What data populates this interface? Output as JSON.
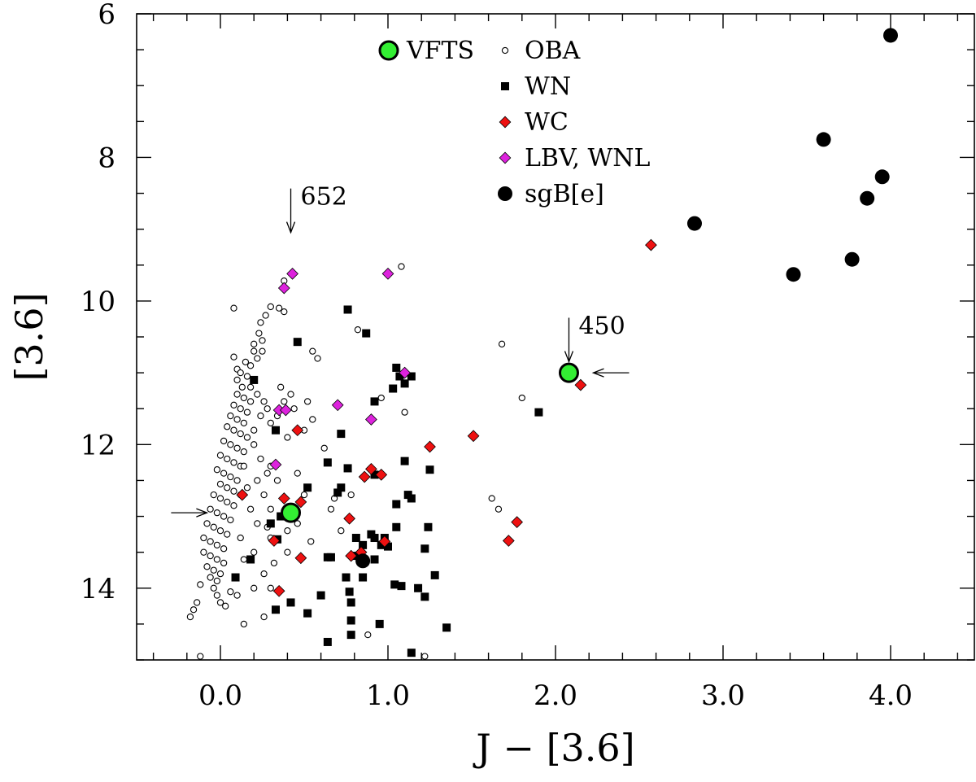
{
  "chart_data": {
    "type": "scatter",
    "xlabel": "J − [3.6]",
    "ylabel": "[3.6]",
    "xlim": [
      -0.5,
      4.5
    ],
    "ylim": [
      15.0,
      6.0
    ],
    "y_inverted": true,
    "xticks": [
      0.0,
      1.0,
      2.0,
      3.0,
      4.0
    ],
    "xtick_labels": [
      "0.0",
      "1.0",
      "2.0",
      "3.0",
      "4.0"
    ],
    "yticks": [
      6,
      8,
      10,
      12,
      14
    ],
    "ytick_labels": [
      "6",
      "8",
      "10",
      "12",
      "14"
    ],
    "grid": false,
    "legend_position": "top-center",
    "annotations": [
      {
        "text": "652",
        "x": 0.42,
        "y": 9.0,
        "arrow": "down"
      },
      {
        "text": "450",
        "x": 2.08,
        "y": 10.8,
        "arrow": "down"
      },
      {
        "text": "",
        "x": 2.08,
        "y": 11.0,
        "arrow": "left"
      },
      {
        "text": "",
        "x": -0.1,
        "y": 12.95,
        "arrow": "right"
      }
    ],
    "series": [
      {
        "name": "VFTS",
        "marker": "circle-large",
        "color": "#33ee33",
        "points": [
          [
            0.42,
            12.95
          ],
          [
            2.08,
            11.0
          ]
        ]
      },
      {
        "name": "OBA",
        "marker": "circle-open-small",
        "color": "#000000",
        "points": [
          [
            0.38,
            9.72
          ],
          [
            0.3,
            10.08
          ],
          [
            0.08,
            10.1
          ],
          [
            0.35,
            10.1
          ],
          [
            0.38,
            10.15
          ],
          [
            0.27,
            10.2
          ],
          [
            0.24,
            10.3
          ],
          [
            0.23,
            10.45
          ],
          [
            0.25,
            10.55
          ],
          [
            0.2,
            10.6
          ],
          [
            0.2,
            10.7
          ],
          [
            0.25,
            10.7
          ],
          [
            0.22,
            10.8
          ],
          [
            0.08,
            10.78
          ],
          [
            0.15,
            10.85
          ],
          [
            0.18,
            10.9
          ],
          [
            0.1,
            10.95
          ],
          [
            0.12,
            11.0
          ],
          [
            0.16,
            11.05
          ],
          [
            0.2,
            11.1
          ],
          [
            0.1,
            11.1
          ],
          [
            0.13,
            11.2
          ],
          [
            0.1,
            11.3
          ],
          [
            0.14,
            11.35
          ],
          [
            0.18,
            11.4
          ],
          [
            0.08,
            11.45
          ],
          [
            0.12,
            11.5
          ],
          [
            0.16,
            11.55
          ],
          [
            0.06,
            11.6
          ],
          [
            0.1,
            11.65
          ],
          [
            0.14,
            11.7
          ],
          [
            0.04,
            11.75
          ],
          [
            0.08,
            11.8
          ],
          [
            0.12,
            11.85
          ],
          [
            0.16,
            11.9
          ],
          [
            0.02,
            11.95
          ],
          [
            0.06,
            12.0
          ],
          [
            0.1,
            12.05
          ],
          [
            0.14,
            12.1
          ],
          [
            0.0,
            12.15
          ],
          [
            0.04,
            12.2
          ],
          [
            0.08,
            12.25
          ],
          [
            0.12,
            12.3
          ],
          [
            -0.02,
            12.35
          ],
          [
            0.02,
            12.4
          ],
          [
            0.06,
            12.45
          ],
          [
            0.1,
            12.5
          ],
          [
            0.0,
            12.55
          ],
          [
            0.04,
            12.6
          ],
          [
            0.08,
            12.65
          ],
          [
            -0.04,
            12.7
          ],
          [
            0.0,
            12.75
          ],
          [
            0.04,
            12.8
          ],
          [
            0.08,
            12.85
          ],
          [
            -0.06,
            12.9
          ],
          [
            -0.02,
            12.95
          ],
          [
            0.02,
            13.0
          ],
          [
            0.06,
            13.05
          ],
          [
            -0.08,
            13.1
          ],
          [
            -0.04,
            13.15
          ],
          [
            0.0,
            13.2
          ],
          [
            0.04,
            13.25
          ],
          [
            -0.1,
            13.3
          ],
          [
            -0.06,
            13.35
          ],
          [
            -0.02,
            13.4
          ],
          [
            0.02,
            13.45
          ],
          [
            -0.1,
            13.5
          ],
          [
            -0.06,
            13.55
          ],
          [
            -0.02,
            13.6
          ],
          [
            0.02,
            13.65
          ],
          [
            -0.08,
            13.7
          ],
          [
            -0.04,
            13.75
          ],
          [
            0.0,
            13.8
          ],
          [
            -0.06,
            13.85
          ],
          [
            -0.02,
            13.9
          ],
          [
            -0.12,
            13.95
          ],
          [
            -0.04,
            14.0
          ],
          [
            0.06,
            14.05
          ],
          [
            -0.02,
            14.1
          ],
          [
            -0.14,
            14.2
          ],
          [
            -0.16,
            14.3
          ],
          [
            -0.18,
            14.4
          ],
          [
            0.0,
            14.2
          ],
          [
            0.03,
            14.25
          ],
          [
            0.18,
            11.2
          ],
          [
            0.22,
            11.3
          ],
          [
            0.26,
            11.4
          ],
          [
            0.2,
            11.8
          ],
          [
            0.24,
            11.6
          ],
          [
            0.28,
            11.5
          ],
          [
            0.3,
            11.7
          ],
          [
            0.34,
            11.6
          ],
          [
            0.38,
            11.4
          ],
          [
            0.42,
            11.3
          ],
          [
            0.36,
            11.2
          ],
          [
            0.4,
            11.9
          ],
          [
            0.44,
            11.5
          ],
          [
            0.2,
            12.0
          ],
          [
            0.24,
            12.2
          ],
          [
            0.28,
            12.4
          ],
          [
            0.22,
            12.5
          ],
          [
            0.26,
            12.7
          ],
          [
            0.3,
            12.9
          ],
          [
            0.18,
            12.9
          ],
          [
            0.22,
            13.1
          ],
          [
            0.3,
            13.3
          ],
          [
            0.36,
            13.0
          ],
          [
            0.4,
            13.2
          ],
          [
            0.2,
            13.5
          ],
          [
            0.26,
            13.8
          ],
          [
            0.2,
            14.0
          ],
          [
            0.1,
            14.1
          ],
          [
            0.12,
            13.3
          ],
          [
            0.14,
            13.6
          ],
          [
            0.16,
            12.6
          ],
          [
            0.3,
            12.3
          ],
          [
            0.34,
            12.5
          ],
          [
            0.46,
            12.4
          ],
          [
            0.5,
            12.7
          ],
          [
            0.54,
            13.35
          ],
          [
            0.26,
            14.4
          ],
          [
            0.14,
            14.5
          ],
          [
            -0.12,
            14.95
          ],
          [
            0.14,
            12.3
          ],
          [
            0.12,
            12.7
          ],
          [
            0.55,
            10.7
          ],
          [
            0.58,
            10.8
          ],
          [
            0.5,
            11.8
          ],
          [
            0.55,
            11.65
          ],
          [
            0.52,
            11.4
          ],
          [
            0.62,
            12.05
          ],
          [
            0.66,
            12.9
          ],
          [
            0.68,
            12.75
          ],
          [
            0.78,
            12.7
          ],
          [
            0.72,
            13.2
          ],
          [
            0.82,
            10.4
          ],
          [
            0.96,
            11.35
          ],
          [
            1.08,
            9.52
          ],
          [
            1.1,
            11.55
          ],
          [
            1.68,
            10.6
          ],
          [
            1.62,
            12.75
          ],
          [
            1.66,
            12.9
          ],
          [
            1.8,
            11.35
          ],
          [
            1.22,
            14.95
          ],
          [
            0.88,
            14.65
          ],
          [
            0.46,
            13.1
          ],
          [
            0.4,
            13.5
          ],
          [
            0.28,
            13.15
          ],
          [
            0.32,
            13.65
          ],
          [
            0.3,
            14.0
          ]
        ]
      },
      {
        "name": "WN",
        "marker": "square-filled",
        "color": "#000000",
        "points": [
          [
            0.76,
            10.12
          ],
          [
            0.46,
            10.57
          ],
          [
            0.87,
            10.45
          ],
          [
            0.2,
            11.1
          ],
          [
            1.05,
            10.93
          ],
          [
            1.07,
            11.05
          ],
          [
            1.03,
            11.22
          ],
          [
            1.1,
            11.15
          ],
          [
            0.92,
            11.4
          ],
          [
            1.14,
            11.05
          ],
          [
            0.33,
            11.8
          ],
          [
            0.72,
            11.85
          ],
          [
            1.9,
            11.55
          ],
          [
            0.64,
            12.25
          ],
          [
            0.76,
            12.33
          ],
          [
            1.1,
            12.23
          ],
          [
            1.25,
            12.35
          ],
          [
            0.52,
            12.6
          ],
          [
            0.72,
            12.6
          ],
          [
            0.7,
            12.67
          ],
          [
            0.92,
            12.42
          ],
          [
            1.05,
            12.83
          ],
          [
            1.12,
            12.7
          ],
          [
            1.14,
            12.75
          ],
          [
            0.36,
            13.0
          ],
          [
            0.34,
            13.32
          ],
          [
            0.3,
            13.1
          ],
          [
            0.18,
            13.6
          ],
          [
            0.09,
            13.85
          ],
          [
            0.81,
            13.3
          ],
          [
            0.9,
            13.25
          ],
          [
            0.92,
            13.3
          ],
          [
            0.98,
            13.3
          ],
          [
            0.96,
            13.4
          ],
          [
            1.0,
            13.42
          ],
          [
            1.05,
            13.15
          ],
          [
            1.04,
            13.95
          ],
          [
            0.92,
            13.6
          ],
          [
            0.85,
            13.4
          ],
          [
            0.85,
            13.85
          ],
          [
            1.24,
            13.15
          ],
          [
            1.22,
            13.45
          ],
          [
            0.8,
            13.55
          ],
          [
            0.75,
            13.85
          ],
          [
            0.77,
            14.05
          ],
          [
            0.78,
            14.2
          ],
          [
            0.78,
            14.45
          ],
          [
            0.78,
            14.65
          ],
          [
            0.95,
            14.5
          ],
          [
            1.08,
            13.97
          ],
          [
            1.18,
            14.0
          ],
          [
            1.22,
            14.12
          ],
          [
            1.28,
            13.82
          ],
          [
            1.35,
            14.55
          ],
          [
            1.14,
            14.9
          ],
          [
            0.64,
            14.75
          ],
          [
            0.6,
            14.1
          ],
          [
            0.52,
            14.35
          ],
          [
            0.42,
            14.2
          ],
          [
            0.33,
            14.3
          ],
          [
            0.64,
            13.57
          ],
          [
            0.66,
            13.57
          ]
        ]
      },
      {
        "name": "WC",
        "marker": "diamond-filled",
        "color": "#ee1111",
        "points": [
          [
            2.57,
            9.22
          ],
          [
            2.15,
            11.17
          ],
          [
            1.51,
            11.88
          ],
          [
            1.25,
            12.03
          ],
          [
            0.46,
            11.8
          ],
          [
            0.9,
            12.34
          ],
          [
            0.96,
            12.42
          ],
          [
            0.86,
            12.45
          ],
          [
            0.13,
            12.7
          ],
          [
            0.38,
            12.75
          ],
          [
            0.48,
            12.8
          ],
          [
            0.77,
            13.03
          ],
          [
            1.77,
            13.08
          ],
          [
            0.32,
            13.34
          ],
          [
            0.98,
            13.35
          ],
          [
            1.72,
            13.34
          ],
          [
            0.48,
            13.58
          ],
          [
            0.78,
            13.55
          ],
          [
            0.84,
            13.5
          ],
          [
            0.35,
            14.04
          ]
        ]
      },
      {
        "name": "LBV, WNL",
        "marker": "diamond-filled",
        "color": "#dd22dd",
        "points": [
          [
            0.43,
            9.62
          ],
          [
            0.38,
            9.82
          ],
          [
            1.0,
            9.62
          ],
          [
            1.1,
            11.0
          ],
          [
            0.7,
            11.45
          ],
          [
            0.35,
            11.52
          ],
          [
            0.39,
            11.52
          ],
          [
            0.9,
            11.65
          ],
          [
            0.33,
            12.28
          ]
        ]
      },
      {
        "name": "sgB[e]",
        "marker": "circle-filled",
        "color": "#000000",
        "points": [
          [
            4.0,
            6.3
          ],
          [
            3.6,
            7.75
          ],
          [
            3.95,
            8.27
          ],
          [
            3.86,
            8.57
          ],
          [
            2.83,
            8.92
          ],
          [
            3.77,
            9.42
          ],
          [
            3.42,
            9.63
          ],
          [
            0.85,
            13.62
          ]
        ]
      }
    ]
  }
}
